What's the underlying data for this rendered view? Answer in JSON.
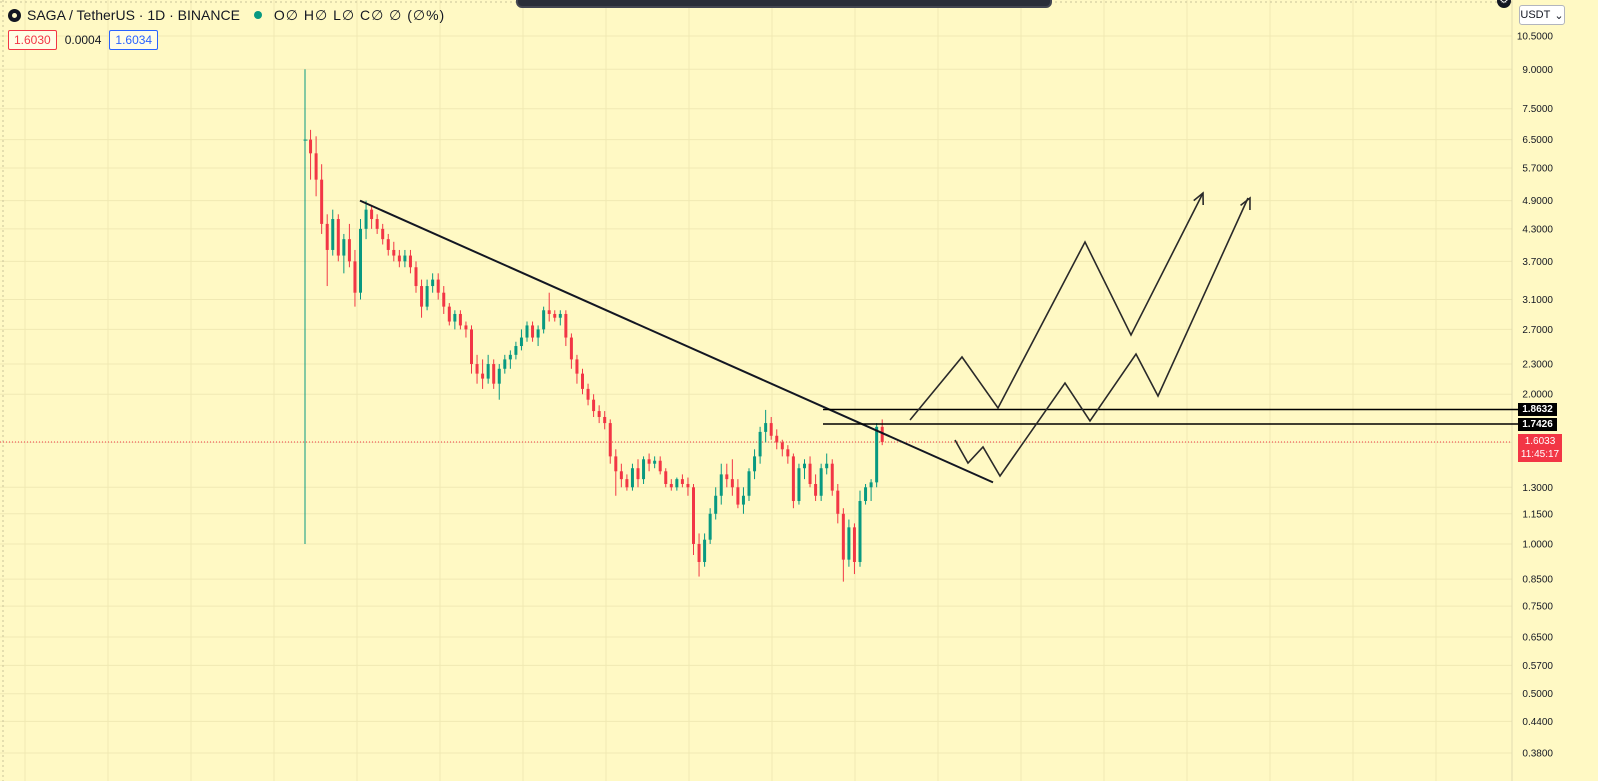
{
  "header": {
    "symbol": "SAGA / TetherUS · 1D · BINANCE",
    "ohlc": "O∅ H∅ L∅ C∅ ∅ (∅%)",
    "bid": "1.6030",
    "spread": "0.0004",
    "ask": "1.6034"
  },
  "currency_button": {
    "label": "USDT",
    "arrow": "⌄"
  },
  "price_axis_labels": [
    "10.5000",
    "9.0000",
    "7.5000",
    "6.5000",
    "5.7000",
    "4.9000",
    "4.3000",
    "3.7000",
    "3.1000",
    "2.7000",
    "2.3000",
    "2.0000",
    "1.6000",
    "1.3000",
    "1.1500",
    "1.0000",
    "0.8500",
    "0.7500",
    "0.6500",
    "0.5700",
    "0.5000",
    "0.4400",
    "0.3800"
  ],
  "last_price": {
    "value": "1.6033",
    "countdown": "11:45:17",
    "color": "#f23645"
  },
  "horizontal_levels": [
    {
      "value": "1.8632"
    },
    {
      "value": "1.7426"
    }
  ],
  "colors": {
    "background": "#fff9c4",
    "up": "#089981",
    "down": "#f23645",
    "drawing": "#131722"
  },
  "icons": {
    "symbol": "tradingview-logo-icon",
    "status": "market-open-dot-icon",
    "corner": "chart-settings-icon"
  },
  "chart_data": {
    "type": "candlestick",
    "scale": "log",
    "y_range": [
      0.37,
      11.5
    ],
    "symbol": "SAGA/USDT",
    "interval": "1D",
    "candles": [
      [
        6.5,
        9.0,
        1.0,
        6.5
      ],
      [
        6.5,
        6.8,
        5.4,
        6.1
      ],
      [
        6.1,
        6.6,
        5.0,
        5.4
      ],
      [
        5.4,
        5.8,
        4.2,
        4.4
      ],
      [
        4.4,
        4.6,
        3.3,
        3.9
      ],
      [
        3.9,
        4.7,
        3.8,
        4.5
      ],
      [
        4.5,
        4.6,
        3.7,
        3.8
      ],
      [
        3.8,
        4.2,
        3.5,
        4.1
      ],
      [
        4.1,
        4.4,
        3.6,
        3.7
      ],
      [
        3.7,
        3.9,
        3.0,
        3.2
      ],
      [
        3.2,
        4.5,
        3.1,
        4.3
      ],
      [
        4.3,
        4.9,
        4.1,
        4.7
      ],
      [
        4.7,
        4.8,
        4.3,
        4.5
      ],
      [
        4.5,
        4.6,
        4.2,
        4.3
      ],
      [
        4.3,
        4.4,
        4.0,
        4.1
      ],
      [
        4.1,
        4.2,
        3.8,
        3.9
      ],
      [
        3.9,
        4.05,
        3.7,
        3.8
      ],
      [
        3.8,
        3.9,
        3.6,
        3.7
      ],
      [
        3.7,
        3.9,
        3.6,
        3.8
      ],
      [
        3.8,
        3.9,
        3.5,
        3.6
      ],
      [
        3.6,
        3.7,
        3.2,
        3.3
      ],
      [
        3.3,
        3.4,
        2.85,
        3.0
      ],
      [
        3.0,
        3.4,
        2.95,
        3.3
      ],
      [
        3.3,
        3.5,
        3.2,
        3.4
      ],
      [
        3.4,
        3.5,
        3.1,
        3.2
      ],
      [
        3.2,
        3.3,
        2.9,
        3.0
      ],
      [
        3.0,
        3.05,
        2.75,
        2.8
      ],
      [
        2.8,
        2.95,
        2.7,
        2.9
      ],
      [
        2.9,
        2.95,
        2.7,
        2.75
      ],
      [
        2.75,
        2.8,
        2.6,
        2.7
      ],
      [
        2.7,
        2.75,
        2.2,
        2.3
      ],
      [
        2.3,
        2.4,
        2.1,
        2.2
      ],
      [
        2.2,
        2.35,
        2.05,
        2.15
      ],
      [
        2.15,
        2.4,
        2.1,
        2.3
      ],
      [
        2.3,
        2.35,
        2.05,
        2.1
      ],
      [
        2.1,
        2.3,
        1.95,
        2.25
      ],
      [
        2.25,
        2.4,
        2.2,
        2.35
      ],
      [
        2.35,
        2.45,
        2.25,
        2.4
      ],
      [
        2.4,
        2.55,
        2.35,
        2.5
      ],
      [
        2.5,
        2.7,
        2.45,
        2.6
      ],
      [
        2.6,
        2.8,
        2.55,
        2.75
      ],
      [
        2.75,
        2.8,
        2.55,
        2.6
      ],
      [
        2.6,
        2.75,
        2.5,
        2.7
      ],
      [
        2.7,
        3.0,
        2.65,
        2.95
      ],
      [
        2.95,
        3.2,
        2.8,
        2.9
      ],
      [
        2.9,
        2.95,
        2.8,
        2.85
      ],
      [
        2.85,
        2.95,
        2.75,
        2.9
      ],
      [
        2.9,
        2.95,
        2.5,
        2.6
      ],
      [
        2.6,
        2.65,
        2.25,
        2.35
      ],
      [
        2.35,
        2.4,
        2.1,
        2.2
      ],
      [
        2.2,
        2.25,
        2.0,
        2.05
      ],
      [
        2.05,
        2.1,
        1.9,
        1.95
      ],
      [
        1.95,
        2.0,
        1.8,
        1.85
      ],
      [
        1.85,
        1.9,
        1.75,
        1.8
      ],
      [
        1.8,
        1.85,
        1.7,
        1.75
      ],
      [
        1.75,
        1.78,
        1.45,
        1.5
      ],
      [
        1.5,
        1.55,
        1.25,
        1.4
      ],
      [
        1.4,
        1.45,
        1.3,
        1.35
      ],
      [
        1.35,
        1.38,
        1.28,
        1.3
      ],
      [
        1.3,
        1.45,
        1.28,
        1.42
      ],
      [
        1.42,
        1.48,
        1.3,
        1.35
      ],
      [
        1.35,
        1.5,
        1.32,
        1.48
      ],
      [
        1.48,
        1.52,
        1.4,
        1.45
      ],
      [
        1.45,
        1.5,
        1.42,
        1.47
      ],
      [
        1.47,
        1.5,
        1.38,
        1.4
      ],
      [
        1.4,
        1.42,
        1.3,
        1.32
      ],
      [
        1.32,
        1.35,
        1.28,
        1.3
      ],
      [
        1.3,
        1.36,
        1.28,
        1.35
      ],
      [
        1.35,
        1.38,
        1.3,
        1.32
      ],
      [
        1.32,
        1.36,
        1.25,
        1.3
      ],
      [
        1.3,
        1.32,
        0.95,
        1.0
      ],
      [
        1.0,
        1.05,
        0.86,
        0.92
      ],
      [
        0.92,
        1.05,
        0.9,
        1.02
      ],
      [
        1.02,
        1.18,
        1.0,
        1.15
      ],
      [
        1.15,
        1.3,
        1.12,
        1.25
      ],
      [
        1.25,
        1.45,
        1.2,
        1.38
      ],
      [
        1.38,
        1.45,
        1.3,
        1.35
      ],
      [
        1.35,
        1.48,
        1.25,
        1.3
      ],
      [
        1.3,
        1.35,
        1.18,
        1.2
      ],
      [
        1.2,
        1.3,
        1.15,
        1.25
      ],
      [
        1.25,
        1.42,
        1.22,
        1.4
      ],
      [
        1.4,
        1.55,
        1.35,
        1.5
      ],
      [
        1.5,
        1.72,
        1.45,
        1.68
      ],
      [
        1.68,
        1.86,
        1.6,
        1.75
      ],
      [
        1.75,
        1.8,
        1.62,
        1.65
      ],
      [
        1.65,
        1.7,
        1.55,
        1.6
      ],
      [
        1.6,
        1.62,
        1.5,
        1.55
      ],
      [
        1.55,
        1.58,
        1.45,
        1.5
      ],
      [
        1.5,
        1.52,
        1.18,
        1.22
      ],
      [
        1.22,
        1.45,
        1.2,
        1.42
      ],
      [
        1.42,
        1.48,
        1.35,
        1.45
      ],
      [
        1.45,
        1.5,
        1.3,
        1.32
      ],
      [
        1.32,
        1.38,
        1.22,
        1.25
      ],
      [
        1.25,
        1.45,
        1.22,
        1.42
      ],
      [
        1.42,
        1.52,
        1.38,
        1.45
      ],
      [
        1.45,
        1.48,
        1.25,
        1.28
      ],
      [
        1.28,
        1.32,
        1.1,
        1.15
      ],
      [
        1.15,
        1.18,
        0.84,
        0.93
      ],
      [
        0.93,
        1.12,
        0.9,
        1.08
      ],
      [
        1.08,
        1.1,
        0.87,
        0.92
      ],
      [
        0.92,
        1.28,
        0.9,
        1.22
      ],
      [
        1.22,
        1.32,
        1.2,
        1.3
      ],
      [
        1.3,
        1.35,
        1.22,
        1.33
      ],
      [
        1.33,
        1.75,
        1.3,
        1.72
      ],
      [
        1.72,
        1.78,
        1.58,
        1.6033
      ]
    ]
  }
}
